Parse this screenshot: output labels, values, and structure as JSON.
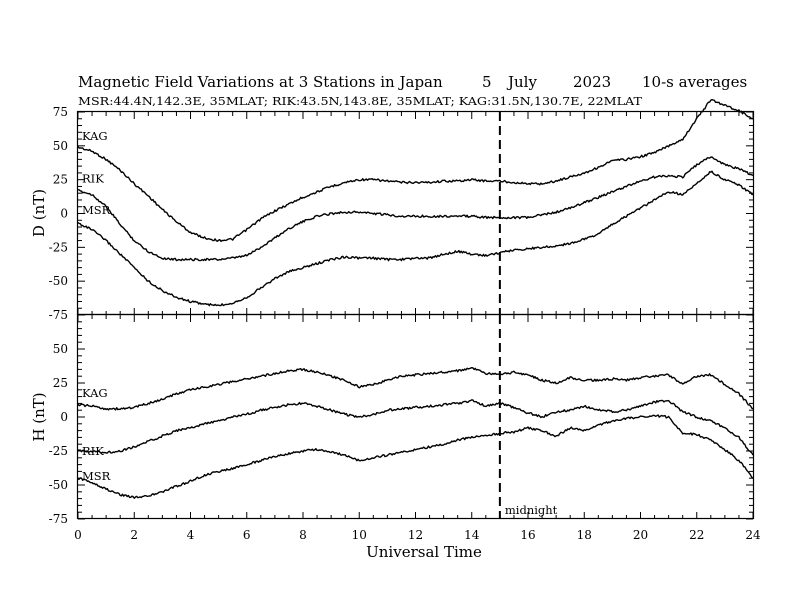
{
  "header": {
    "title": "Magnetic Field Variations at 3 Stations in Japan",
    "day": "5",
    "month": "July",
    "year": "2023",
    "averaging": "10-s averages",
    "stations": "MSR:44.4N,142.3E, 35MLAT;  RIK:43.5N,143.8E, 35MLAT;  KAG:31.5N,130.7E, 22MLAT"
  },
  "chart_data": [
    {
      "type": "line",
      "panel": "D",
      "ylabel": "D (nT)",
      "xlim": [
        0,
        24
      ],
      "ylim": [
        -75,
        75
      ],
      "yticks": [
        "75",
        "50",
        "25",
        "0",
        "-25",
        "-50",
        "-75"
      ],
      "midnight_marker_x": 15,
      "series": [
        {
          "name": "KAG",
          "x": [
            0,
            0.5,
            1,
            1.5,
            2,
            2.5,
            3,
            3.5,
            4,
            4.5,
            5,
            5.5,
            6,
            6.5,
            7,
            7.5,
            8,
            8.5,
            9,
            9.5,
            10,
            10.5,
            11,
            11.5,
            12,
            12.5,
            13,
            13.5,
            14,
            14.5,
            15,
            15.5,
            16,
            16.5,
            17,
            17.5,
            18,
            18.5,
            19,
            19.5,
            20,
            20.5,
            21,
            21.5,
            22,
            22.5,
            23,
            23.5,
            24
          ],
          "y": [
            49,
            46,
            40,
            32,
            22,
            13,
            3,
            -6,
            -14,
            -18,
            -20,
            -19,
            -12,
            -4,
            2,
            7,
            12,
            16,
            20,
            23,
            25,
            25,
            24,
            23,
            23,
            23,
            24,
            24,
            25,
            24,
            24,
            23,
            22,
            22,
            24,
            27,
            30,
            34,
            39,
            40,
            42,
            45,
            50,
            55,
            70,
            84,
            80,
            76,
            70
          ]
        },
        {
          "name": "RIK",
          "x": [
            0,
            0.5,
            1,
            1.5,
            2,
            2.5,
            3,
            3.5,
            4,
            4.5,
            5,
            5.5,
            6,
            6.5,
            7,
            7.5,
            8,
            8.5,
            9,
            9.5,
            10,
            10.5,
            11,
            11.5,
            12,
            12.5,
            13,
            13.5,
            14,
            14.5,
            15,
            15.5,
            16,
            16.5,
            17,
            17.5,
            18,
            18.5,
            19,
            19.5,
            20,
            20.5,
            21,
            21.5,
            22,
            22.5,
            23,
            23.5,
            24
          ],
          "y": [
            17,
            14,
            5,
            -8,
            -20,
            -28,
            -33,
            -34,
            -34,
            -34,
            -34,
            -33,
            -31,
            -25,
            -18,
            -11,
            -6,
            -2,
            0,
            1,
            1,
            0,
            -1,
            -2,
            -2,
            -2,
            -2,
            -2,
            -2,
            -3,
            -3,
            -3,
            -3,
            -1,
            1,
            4,
            8,
            12,
            16,
            20,
            24,
            27,
            28,
            27,
            36,
            42,
            36,
            33,
            28
          ]
        },
        {
          "name": "MSR",
          "x": [
            0,
            0.5,
            1,
            1.5,
            2,
            2.5,
            3,
            3.5,
            4,
            4.5,
            5,
            5.5,
            6,
            6.5,
            7,
            7.5,
            8,
            8.5,
            9,
            9.5,
            10,
            10.5,
            11,
            11.5,
            12,
            12.5,
            13,
            13.5,
            14,
            14.5,
            15,
            15.5,
            16,
            16.5,
            17,
            17.5,
            18,
            18.5,
            19,
            19.5,
            20,
            20.5,
            21,
            21.5,
            22,
            22.5,
            23,
            23.5,
            24
          ],
          "y": [
            -7,
            -12,
            -20,
            -30,
            -40,
            -50,
            -57,
            -62,
            -65,
            -67,
            -68,
            -66,
            -62,
            -55,
            -48,
            -43,
            -40,
            -37,
            -34,
            -32,
            -33,
            -33,
            -34,
            -34,
            -33,
            -33,
            -30,
            -28,
            -30,
            -31,
            -29,
            -27,
            -26,
            -25,
            -24,
            -22,
            -19,
            -15,
            -8,
            -2,
            4,
            10,
            16,
            14,
            22,
            31,
            25,
            21,
            14
          ]
        }
      ]
    },
    {
      "type": "line",
      "panel": "H",
      "ylabel": "H (nT)",
      "xlabel": "Universal Time",
      "xlim": [
        0,
        24
      ],
      "ylim": [
        -75,
        75
      ],
      "xticks": [
        "0",
        "2",
        "4",
        "6",
        "8",
        "10",
        "12",
        "14",
        "16",
        "18",
        "20",
        "22",
        "24"
      ],
      "yticks": [
        "75",
        "50",
        "25",
        "0",
        "-25",
        "-50",
        "-75"
      ],
      "midnight_label": "midnight",
      "midnight_marker_x": 15,
      "series": [
        {
          "name": "KAG",
          "x": [
            0,
            0.5,
            1,
            1.5,
            2,
            2.5,
            3,
            3.5,
            4,
            4.5,
            5,
            5.5,
            6,
            6.5,
            7,
            7.5,
            8,
            8.5,
            9,
            9.5,
            10,
            10.5,
            11,
            11.5,
            12,
            12.5,
            13,
            13.5,
            14,
            14.5,
            15,
            15.5,
            16,
            16.5,
            17,
            17.5,
            18,
            18.5,
            19,
            19.5,
            20,
            20.5,
            21,
            21.5,
            22,
            22.5,
            23,
            23.5,
            24
          ],
          "y": [
            9,
            8,
            6,
            6,
            7,
            10,
            13,
            17,
            20,
            22,
            24,
            26,
            28,
            30,
            32,
            34,
            35,
            33,
            30,
            27,
            22,
            24,
            27,
            30,
            31,
            32,
            33,
            34,
            36,
            32,
            31,
            33,
            31,
            27,
            25,
            29,
            27,
            27,
            28,
            27,
            29,
            30,
            31,
            24,
            30,
            31,
            24,
            17,
            6
          ]
        },
        {
          "name": "RIK",
          "x": [
            0,
            0.5,
            1,
            1.5,
            2,
            2.5,
            3,
            3.5,
            4,
            4.5,
            5,
            5.5,
            6,
            6.5,
            7,
            7.5,
            8,
            8.5,
            9,
            9.5,
            10,
            10.5,
            11,
            11.5,
            12,
            12.5,
            13,
            13.5,
            14,
            14.5,
            15,
            15.5,
            16,
            16.5,
            17,
            17.5,
            18,
            18.5,
            19,
            19.5,
            20,
            20.5,
            21,
            21.5,
            22,
            22.5,
            23,
            23.5,
            24
          ],
          "y": [
            -25,
            -25,
            -26,
            -25,
            -22,
            -18,
            -14,
            -10,
            -8,
            -5,
            -3,
            0,
            2,
            5,
            7,
            9,
            10,
            8,
            5,
            2,
            0,
            2,
            5,
            6,
            7,
            8,
            9,
            10,
            12,
            8,
            10,
            7,
            3,
            0,
            4,
            5,
            8,
            5,
            4,
            5,
            8,
            11,
            12,
            4,
            0,
            -3,
            -8,
            -15,
            -28
          ]
        },
        {
          "name": "MSR",
          "x": [
            0,
            0.5,
            1,
            1.5,
            2,
            2.5,
            3,
            3.5,
            4,
            4.5,
            5,
            5.5,
            6,
            6.5,
            7,
            7.5,
            8,
            8.5,
            9,
            9.5,
            10,
            10.5,
            11,
            11.5,
            12,
            12.5,
            13,
            13.5,
            14,
            14.5,
            15,
            15.5,
            16,
            16.5,
            17,
            17.5,
            18,
            18.5,
            19,
            19.5,
            20,
            20.5,
            21,
            21.5,
            22,
            22.5,
            23,
            23.5,
            24
          ],
          "y": [
            -45,
            -48,
            -53,
            -57,
            -59,
            -58,
            -55,
            -51,
            -47,
            -43,
            -40,
            -38,
            -35,
            -32,
            -29,
            -27,
            -25,
            -24,
            -26,
            -28,
            -32,
            -30,
            -28,
            -26,
            -24,
            -22,
            -20,
            -17,
            -15,
            -14,
            -12,
            -11,
            -8,
            -10,
            -14,
            -8,
            -10,
            -6,
            -3,
            -1,
            0,
            1,
            0,
            -12,
            -13,
            -17,
            -24,
            -32,
            -45
          ]
        }
      ]
    }
  ]
}
